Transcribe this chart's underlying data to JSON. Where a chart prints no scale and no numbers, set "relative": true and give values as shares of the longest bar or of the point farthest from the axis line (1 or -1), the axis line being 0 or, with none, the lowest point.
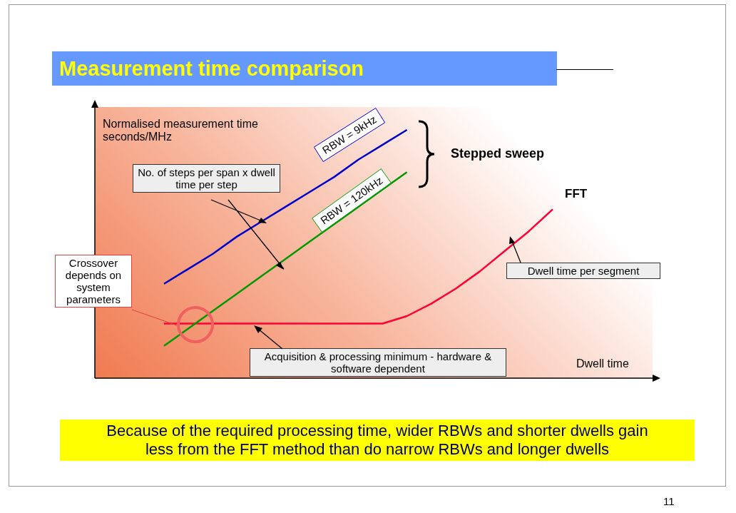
{
  "chart_data": {
    "type": "line",
    "title": "Measurement time comparison",
    "ylabel": "Normalised measurement time seconds/MHz",
    "xlabel": "Dwell time",
    "relative": true,
    "legend": false,
    "marker": "none",
    "categories": [
      null,
      null,
      null,
      null,
      null,
      null,
      null,
      null,
      null,
      null,
      null,
      null,
      null,
      null,
      null,
      null,
      null
    ],
    "series": [
      {
        "name": "RBW = 9kHz",
        "color": "#0000cc",
        "values": [
          0.38,
          0.44,
          0.5,
          0.57,
          0.63,
          0.69,
          0.75,
          0.81,
          0.88,
          0.94,
          1.0,
          null,
          null,
          null,
          null,
          null,
          null
        ]
      },
      {
        "name": "RBW = 120kHz",
        "color": "#009900",
        "values": [
          0.13,
          0.2,
          0.27,
          0.34,
          0.41,
          0.48,
          0.55,
          0.62,
          0.69,
          0.76,
          0.83,
          null,
          null,
          null,
          null,
          null,
          null
        ]
      },
      {
        "name": "FFT",
        "color": "#ff0033",
        "values": [
          0.22,
          0.22,
          0.22,
          0.22,
          0.22,
          0.22,
          0.22,
          0.22,
          0.22,
          0.22,
          0.25,
          0.3,
          0.36,
          0.43,
          0.51,
          0.59,
          0.68
        ]
      }
    ],
    "annotations": [
      "Stepped sweep",
      "No. of steps per span x dwell time per step",
      "Crossover depends on system parameters",
      "Dwell time per segment",
      "Acquisition & processing minimum - hardware & software dependent",
      "Because of the required processing time, wider RBWs and shorter dwells gain less from the FFT method than do narrow RBWs and longer dwells",
      "11"
    ]
  }
}
